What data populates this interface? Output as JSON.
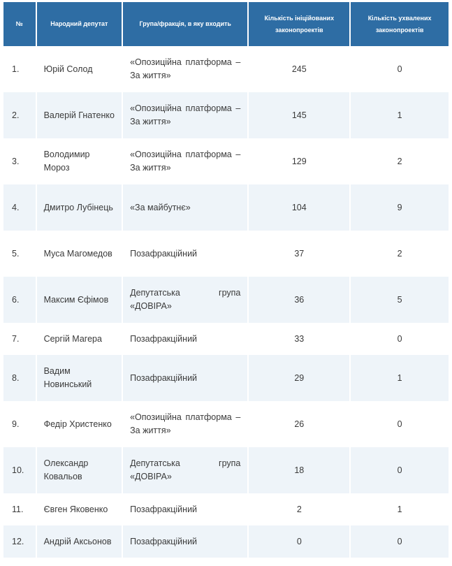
{
  "headers": {
    "num": "№",
    "deputy": "Народний депутат",
    "group": "Група/фракція, в яку входить",
    "initiated": "Кількість ініційованих законопроектів",
    "adopted": "Кількість ухвалених законопроектів"
  },
  "rows": [
    {
      "num": "1.",
      "name": "Юрій Солод",
      "group": "«Опозиційна платформа – За життя»",
      "initiated": "245",
      "adopted": "0"
    },
    {
      "num": "2.",
      "name": "Валерій Гнатенко",
      "group": "«Опозиційна платформа – За життя»",
      "initiated": "145",
      "adopted": "1"
    },
    {
      "num": "3.",
      "name": "Володимир Мороз",
      "group": "«Опозиційна платформа – За життя»",
      "initiated": "129",
      "adopted": "2"
    },
    {
      "num": "4.",
      "name": "Дмитро Лубінець",
      "group": "«За майбутнє»",
      "initiated": "104",
      "adopted": "9"
    },
    {
      "num": "5.",
      "name": "Муса Магомедов",
      "group": "Позафракційний",
      "initiated": "37",
      "adopted": "2"
    },
    {
      "num": "6.",
      "name": "Максим Єфімов",
      "group": "Депутатська група «ДОВІРА»",
      "initiated": "36",
      "adopted": "5"
    },
    {
      "num": "7.",
      "name": "Сергій Магера",
      "group": "Позафракційний",
      "initiated": "33",
      "adopted": "0"
    },
    {
      "num": "8.",
      "name": "Вадим Новинський",
      "group": "Позафракційний",
      "initiated": "29",
      "adopted": "1"
    },
    {
      "num": "9.",
      "name": "Федір Христенко",
      "group": "«Опозиційна платформа – За життя»",
      "initiated": "26",
      "adopted": "0"
    },
    {
      "num": "10.",
      "name": "Олександр Ковальов",
      "group": "Депутатська група «ДОВІРА»",
      "initiated": "18",
      "adopted": "0"
    },
    {
      "num": "11.",
      "name": "Євген Яковенко",
      "group": "Позафракційний",
      "initiated": "2",
      "adopted": "1"
    },
    {
      "num": "12.",
      "name": "Андрій Аксьонов",
      "group": "Позафракційний",
      "initiated": "0",
      "adopted": "0"
    }
  ]
}
